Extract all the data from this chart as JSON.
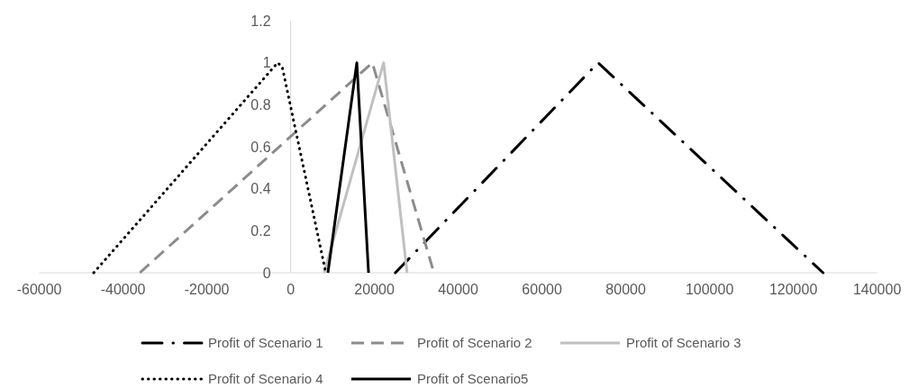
{
  "chart_data": {
    "type": "line",
    "xlim": [
      -60000,
      140000
    ],
    "xticks": [
      -60000,
      -40000,
      -20000,
      0,
      20000,
      40000,
      60000,
      80000,
      100000,
      120000,
      140000
    ],
    "ylim": [
      0,
      1.2
    ],
    "yticks": [
      0,
      0.2,
      0.4,
      0.6,
      0.8,
      1,
      1.2
    ],
    "grid": false,
    "legend": "bottom",
    "marker": "none",
    "series": [
      {
        "name": "Profit of Scenario 1",
        "color": "#000000",
        "line_style": "dashdot",
        "x": [
          25000,
          73400,
          127100
        ],
        "values": [
          0,
          1,
          0
        ]
      },
      {
        "name": "Profit of Scenario 2",
        "color": "#8c8c8c",
        "line_style": "dashed",
        "x": [
          -36000,
          19500,
          34200
        ],
        "values": [
          0,
          1,
          0
        ]
      },
      {
        "name": "Profit of Scenario 3",
        "color": "#c0c0c0",
        "line_style": "solid",
        "x": [
          8000,
          22200,
          27800
        ],
        "values": [
          0,
          1,
          0
        ]
      },
      {
        "name": "Profit of Scenario 4",
        "color": "#000000",
        "line_style": "dotted",
        "x": [
          -47000,
          -3100,
          -2000,
          8400
        ],
        "values": [
          0,
          1,
          0.98,
          0
        ]
      },
      {
        "name": "Profit of Scenario5",
        "color": "#000000",
        "line_style": "solid",
        "x": [
          8900,
          15800,
          18600
        ],
        "values": [
          0,
          1,
          0
        ]
      }
    ]
  }
}
